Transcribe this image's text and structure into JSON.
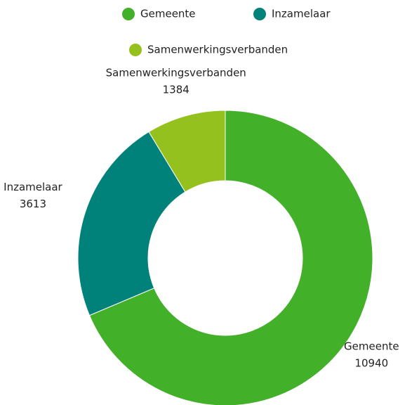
{
  "chart_data": {
    "type": "pie",
    "categories": [
      "Gemeente",
      "Inzamelaar",
      "Samenwerkingsverbanden"
    ],
    "values": [
      10940,
      3613,
      1384
    ],
    "colors": [
      "#43b02a",
      "#00827a",
      "#95c11f"
    ],
    "donut": true,
    "legend": "top"
  }
}
